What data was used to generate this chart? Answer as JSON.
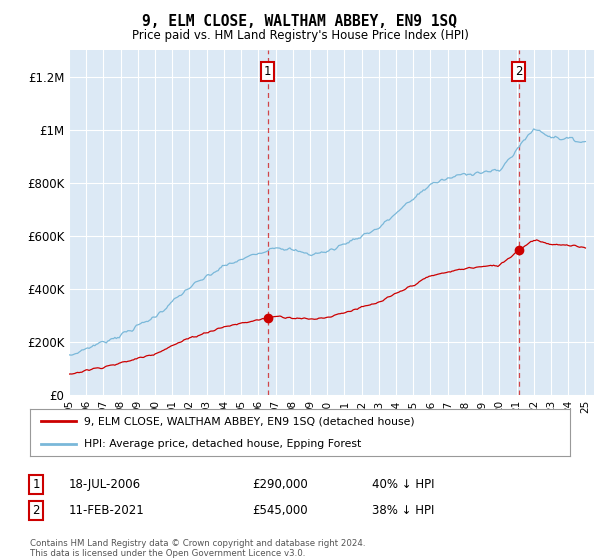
{
  "title": "9, ELM CLOSE, WALTHAM ABBEY, EN9 1SQ",
  "subtitle": "Price paid vs. HM Land Registry's House Price Index (HPI)",
  "legend_line1": "9, ELM CLOSE, WALTHAM ABBEY, EN9 1SQ (detached house)",
  "legend_line2": "HPI: Average price, detached house, Epping Forest",
  "annotation1_date": "18-JUL-2006",
  "annotation1_price": "£290,000",
  "annotation1_hpi": "40% ↓ HPI",
  "annotation1_year": 2006.54,
  "annotation1_value": 290000,
  "annotation2_date": "11-FEB-2021",
  "annotation2_price": "£545,000",
  "annotation2_hpi": "38% ↓ HPI",
  "annotation2_year": 2021.12,
  "annotation2_value": 545000,
  "hpi_color": "#7ab8d9",
  "price_color": "#cc0000",
  "plot_bg_color": "#dce9f5",
  "grid_color": "#ffffff",
  "ylim": [
    0,
    1300000
  ],
  "yticks": [
    0,
    200000,
    400000,
    600000,
    800000,
    1000000,
    1200000
  ],
  "ytick_labels": [
    "£0",
    "£200K",
    "£400K",
    "£600K",
    "£800K",
    "£1M",
    "£1.2M"
  ],
  "footer": "Contains HM Land Registry data © Crown copyright and database right 2024.\nThis data is licensed under the Open Government Licence v3.0."
}
